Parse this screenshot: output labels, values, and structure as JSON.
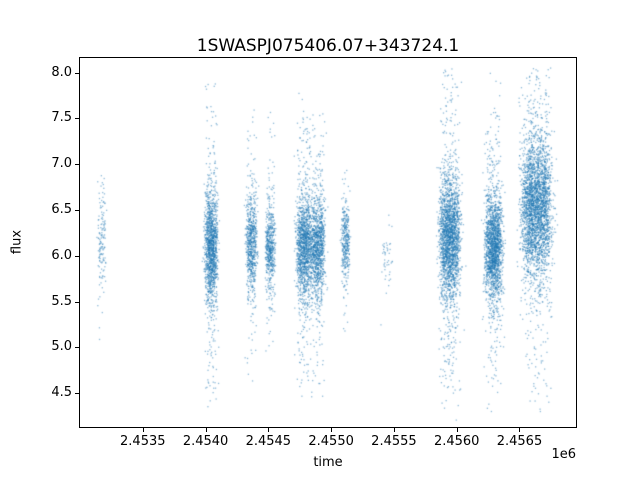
{
  "chart_data": {
    "type": "scatter",
    "title": "1SWASPJ075406.07+343724.1",
    "xlabel": "time",
    "ylabel": "flux",
    "x_offset_label": "1e6",
    "xlim": [
      2.453,
      2.45695
    ],
    "ylim": [
      4.13,
      8.16
    ],
    "xticks": [
      2.4535,
      2.454,
      2.4545,
      2.455,
      2.4555,
      2.456,
      2.4565
    ],
    "xtick_labels": [
      "2.4535",
      "2.4540",
      "2.4545",
      "2.4550",
      "2.4555",
      "2.4560",
      "2.4565"
    ],
    "yticks": [
      4.5,
      5.0,
      5.5,
      6.0,
      6.5,
      7.0,
      7.5,
      8.0
    ],
    "ytick_labels": [
      "4.5",
      "5.0",
      "5.5",
      "6.0",
      "6.5",
      "7.0",
      "7.5",
      "8.0"
    ],
    "marker_color": "#1f77b4",
    "marker_alpha": 0.5,
    "grid": false,
    "legend": false,
    "series": [
      {
        "name": "flux",
        "clusters": [
          {
            "t_center": 2.45317,
            "t_width": 5e-05,
            "n": 140,
            "flux_mean": 6.2,
            "flux_sigma": 0.25,
            "flux_min": 4.95,
            "flux_max": 6.95
          },
          {
            "t_center": 2.45404,
            "t_width": 8e-05,
            "n": 1400,
            "flux_mean": 6.1,
            "flux_sigma": 0.3,
            "flux_min": 4.35,
            "flux_max": 7.9
          },
          {
            "t_center": 2.45436,
            "t_width": 7e-05,
            "n": 700,
            "flux_mean": 6.15,
            "flux_sigma": 0.25,
            "flux_min": 4.5,
            "flux_max": 7.6
          },
          {
            "t_center": 2.45451,
            "t_width": 6e-05,
            "n": 550,
            "flux_mean": 6.1,
            "flux_sigma": 0.22,
            "flux_min": 4.95,
            "flux_max": 7.65
          },
          {
            "t_center": 2.45478,
            "t_width": 0.0001,
            "n": 1400,
            "flux_mean": 6.1,
            "flux_sigma": 0.28,
            "flux_min": 4.4,
            "flux_max": 7.85
          },
          {
            "t_center": 2.45489,
            "t_width": 9e-05,
            "n": 1100,
            "flux_mean": 6.1,
            "flux_sigma": 0.28,
            "flux_min": 4.45,
            "flux_max": 7.6
          },
          {
            "t_center": 2.45511,
            "t_width": 5e-05,
            "n": 350,
            "flux_mean": 6.15,
            "flux_sigma": 0.2,
            "flux_min": 4.55,
            "flux_max": 6.95
          },
          {
            "t_center": 2.45544,
            "t_width": 6e-05,
            "n": 45,
            "flux_mean": 6.0,
            "flux_sigma": 0.18,
            "flux_min": 4.9,
            "flux_max": 6.5
          },
          {
            "t_center": 2.45594,
            "t_width": 0.00013,
            "n": 2300,
            "flux_mean": 6.2,
            "flux_sigma": 0.33,
            "flux_min": 4.2,
            "flux_max": 8.05
          },
          {
            "t_center": 2.45629,
            "t_width": 0.00011,
            "n": 1900,
            "flux_mean": 6.1,
            "flux_sigma": 0.3,
            "flux_min": 4.3,
            "flux_max": 8.0
          },
          {
            "t_center": 2.45663,
            "t_width": 0.00019,
            "n": 3000,
            "flux_mean": 6.55,
            "flux_sigma": 0.38,
            "flux_min": 4.3,
            "flux_max": 8.06
          }
        ]
      }
    ]
  }
}
